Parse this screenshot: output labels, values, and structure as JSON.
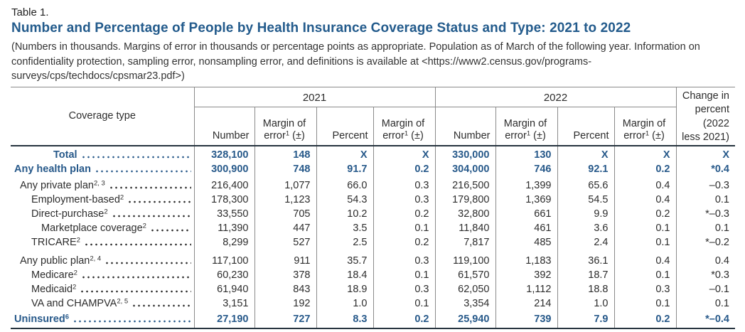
{
  "colors": {
    "accent": "#235b8c",
    "boldblue": "#27598a",
    "grid": "#8a8a8a",
    "heavy": "#27343f",
    "text": "#2d2d2d"
  },
  "header": {
    "table_label": "Table 1.",
    "title": "Number and Percentage of People by Health Insurance Coverage Status and Type: 2021 to 2022",
    "note": "(Numbers in thousands. Margins of error in thousands or percentage points as appropriate. Population as of March of the following year. Information on confidentiality protection, sampling error, nonsampling error, and definitions is available at <https://www2.census.gov/programs-surveys/cps/techdocs/cpsmar23.pdf>)"
  },
  "table": {
    "coverage_type_header": "Coverage type",
    "year_groups": [
      "2021",
      "2022"
    ],
    "sub_headers": {
      "number": "Number",
      "margin_line1": "Margin of",
      "margin_word": "error",
      "margin_sup": "1",
      "margin_suffix": "(±)",
      "percent": "Percent"
    },
    "change_header_lines": [
      "Change in",
      "percent",
      "(2022",
      "less 2021)"
    ],
    "rows": [
      {
        "label": "Total",
        "sup": "",
        "indent": 60,
        "bold": true,
        "gap": 0,
        "y2021": [
          "328,100",
          "148",
          "X",
          "X"
        ],
        "y2022": [
          "330,000",
          "130",
          "X",
          "X"
        ],
        "change": "X"
      },
      {
        "label": "Any health plan",
        "sup": "",
        "indent": 5,
        "bold": true,
        "gap": 0,
        "y2021": [
          "300,900",
          "748",
          "91.7",
          "0.2"
        ],
        "y2022": [
          "304,000",
          "746",
          "92.1",
          "0.2"
        ],
        "change": "*0.4"
      },
      {
        "label": "Any private plan",
        "sup": "2, 3",
        "indent": 13,
        "bold": false,
        "gap": 6,
        "y2021": [
          "216,400",
          "1,077",
          "66.0",
          "0.3"
        ],
        "y2022": [
          "216,500",
          "1,399",
          "65.6",
          "0.4"
        ],
        "change": "–0.3"
      },
      {
        "label": "Employment-based",
        "sup": "2",
        "indent": 29,
        "bold": false,
        "gap": 0,
        "y2021": [
          "178,300",
          "1,123",
          "54.3",
          "0.3"
        ],
        "y2022": [
          "179,800",
          "1,369",
          "54.5",
          "0.4"
        ],
        "change": "0.1"
      },
      {
        "label": "Direct-purchase",
        "sup": "2",
        "indent": 29,
        "bold": false,
        "gap": 0,
        "y2021": [
          "33,550",
          "705",
          "10.2",
          "0.2"
        ],
        "y2022": [
          "32,800",
          "661",
          "9.9",
          "0.2"
        ],
        "change": "*–0.3"
      },
      {
        "label": "Marketplace coverage",
        "sup": "2",
        "indent": 43,
        "bold": false,
        "gap": 0,
        "y2021": [
          "11,390",
          "447",
          "3.5",
          "0.1"
        ],
        "y2022": [
          "11,840",
          "461",
          "3.6",
          "0.1"
        ],
        "change": "0.1"
      },
      {
        "label": "TRICARE",
        "sup": "2",
        "indent": 29,
        "bold": false,
        "gap": 0,
        "y2021": [
          "8,299",
          "527",
          "2.5",
          "0.2"
        ],
        "y2022": [
          "7,817",
          "485",
          "2.4",
          "0.1"
        ],
        "change": "*–0.2"
      },
      {
        "label": "Any public plan",
        "sup": "2, 4",
        "indent": 13,
        "bold": false,
        "gap": 9,
        "y2021": [
          "117,100",
          "911",
          "35.7",
          "0.3"
        ],
        "y2022": [
          "119,100",
          "1,183",
          "36.1",
          "0.4"
        ],
        "change": "0.4"
      },
      {
        "label": "Medicare",
        "sup": "2",
        "indent": 29,
        "bold": false,
        "gap": 0,
        "y2021": [
          "60,230",
          "378",
          "18.4",
          "0.1"
        ],
        "y2022": [
          "61,570",
          "392",
          "18.7",
          "0.1"
        ],
        "change": "*0.3"
      },
      {
        "label": "Medicaid",
        "sup": "2",
        "indent": 29,
        "bold": false,
        "gap": 0,
        "y2021": [
          "61,940",
          "843",
          "18.9",
          "0.3"
        ],
        "y2022": [
          "62,050",
          "1,112",
          "18.8",
          "0.3"
        ],
        "change": "–0.1"
      },
      {
        "label": "VA and CHAMPVA",
        "sup": "2, 5",
        "indent": 29,
        "bold": false,
        "gap": 0,
        "y2021": [
          "3,151",
          "192",
          "1.0",
          "0.1"
        ],
        "y2022": [
          "3,354",
          "214",
          "1.0",
          "0.1"
        ],
        "change": "0.1"
      },
      {
        "label": "Uninsured",
        "sup": "6",
        "indent": 5,
        "bold": true,
        "gap": 5,
        "y2021": [
          "27,190",
          "727",
          "8.3",
          "0.2"
        ],
        "y2022": [
          "25,940",
          "739",
          "7.9",
          "0.2"
        ],
        "change": "*–0.4"
      }
    ]
  }
}
